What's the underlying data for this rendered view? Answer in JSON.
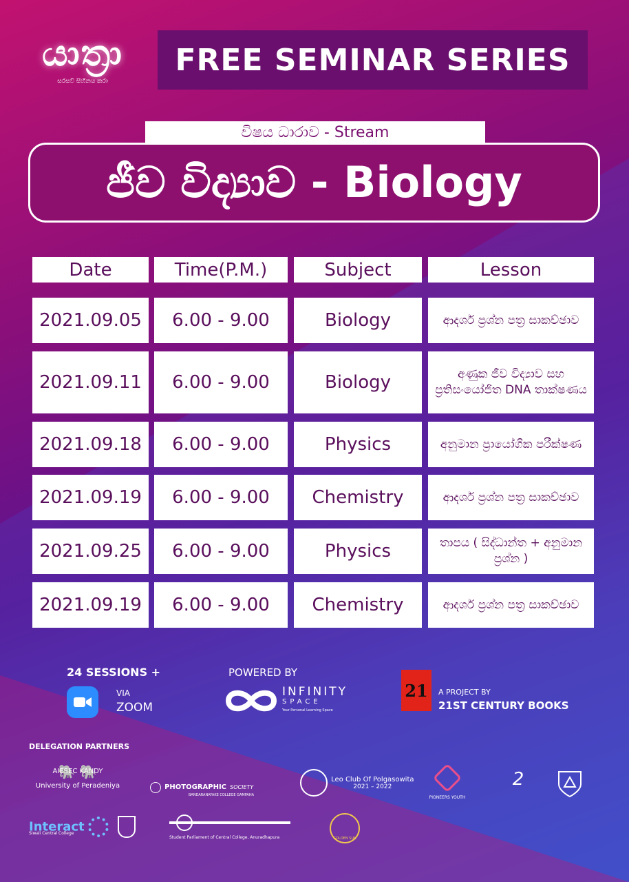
{
  "logo": {
    "text": "යාත්‍රා",
    "tagline": "සරසවි සිහිනය කරා"
  },
  "banner": {
    "title": "FREE SEMINAR SERIES"
  },
  "stream": {
    "label": "විෂය ධාරාව  -  Stream",
    "title": "ජීව විද්‍යාව - Biology"
  },
  "table": {
    "headers": [
      "Date",
      "Time(P.M.)",
      "Subject",
      "Lesson"
    ],
    "rows": [
      {
        "date": "2021.09.05",
        "time": "6.00 - 9.00",
        "subject": "Biology",
        "lesson": "ආදර්ශ ප්‍රශ්න පත්‍ර සාකච්ඡාව"
      },
      {
        "date": "2021.09.11",
        "time": "6.00 - 9.00",
        "subject": "Biology",
        "lesson": "අණුක ජීව විද්‍යාව සහ ප්‍රතිසංයෝජිත DNA තාක්ෂණය"
      },
      {
        "date": "2021.09.18",
        "time": "6.00 - 9.00",
        "subject": "Physics",
        "lesson": "අනුමාන ප්‍රායෝගික පරීක්ෂණ"
      },
      {
        "date": "2021.09.19",
        "time": "6.00 - 9.00",
        "subject": "Chemistry",
        "lesson": "ආදර්ශ ප්‍රශ්න පත්‍ර සාකච්ඡාව"
      },
      {
        "date": "2021.09.25",
        "time": "6.00 - 9.00",
        "subject": "Physics",
        "lesson": "තාපය ( සිද්ධාන්ත + අනුමාන ප්‍රශ්න )"
      },
      {
        "date": "2021.09.19",
        "time": "6.00 - 9.00",
        "subject": "Chemistry",
        "lesson": "ආදර්ශ ප්‍රශ්න පත්‍ර සාකච්ඡාව"
      }
    ]
  },
  "footer": {
    "sessions": "24 SESSIONS +",
    "via": "VIA",
    "zoom": "ZOOM",
    "powered_by": "POWERED BY",
    "infinity_name": "INFINITY",
    "infinity_space": "SPACE",
    "infinity_tag": "Your Personal Learning Space",
    "project_by": "A PROJECT BY",
    "project_name": "21ST CENTURY BOOKS",
    "c21_mark": "21"
  },
  "partners": {
    "heading": "DELEGATION PARTNERS",
    "aiesec": "AIESEC KANDY",
    "aiesec_sub": "University of Peradeniya",
    "photo": "PHOTOGRAPHIC",
    "photo_society": "SOCIETY",
    "photo_sub": "BANDARANAYAKE COLLEGE GAMPAHA",
    "leo": "Leo Club Of Polgasowita",
    "leo_years": "2021 – 2022",
    "pioneers": "PIONEERS YOUTH",
    "interact": "Interact",
    "interact_sub": "Siwali Central College",
    "parliament": "Student Parliament of Central College, Anuradhapura",
    "golden": "GOLDEN SUN"
  },
  "colors": {
    "primary": "#5a0f5c",
    "zoom": "#2d8cff",
    "c21": "#e2231a"
  }
}
